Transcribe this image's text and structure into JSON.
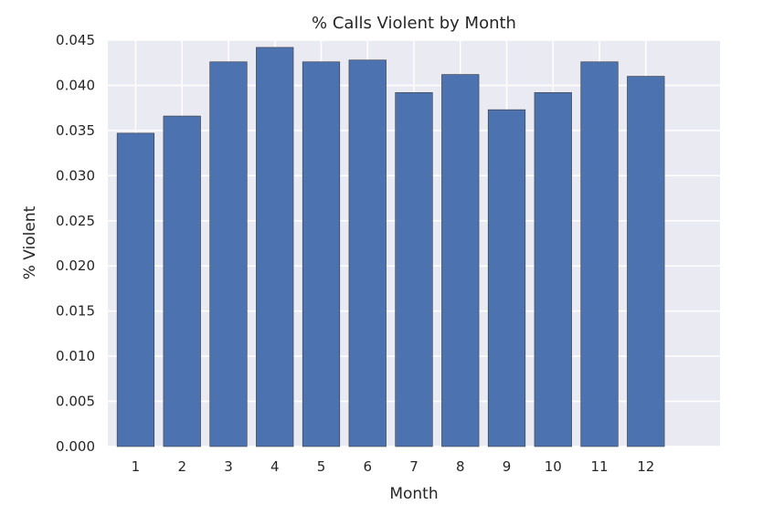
{
  "chart_data": {
    "type": "bar",
    "title": "% Calls Violent by Month",
    "xlabel": "Month",
    "ylabel": "% Violent",
    "categories": [
      "1",
      "2",
      "3",
      "4",
      "5",
      "6",
      "7",
      "8",
      "9",
      "10",
      "11",
      "12"
    ],
    "values": [
      0.0347,
      0.0366,
      0.0426,
      0.0442,
      0.0426,
      0.0428,
      0.0392,
      0.0412,
      0.0373,
      0.0392,
      0.0426,
      0.041
    ],
    "ylim": [
      0,
      0.045
    ],
    "xlim": [
      0.4,
      13.6
    ],
    "yticks": [
      "0.000",
      "0.005",
      "0.010",
      "0.015",
      "0.020",
      "0.025",
      "0.030",
      "0.035",
      "0.040",
      "0.045"
    ],
    "grid": true,
    "colors": {
      "bar": "#4c72b0",
      "bar_edge": "#3a3a3a",
      "plot_background": "#eaeaf2",
      "grid": "#ffffff",
      "text": "#262626"
    }
  }
}
